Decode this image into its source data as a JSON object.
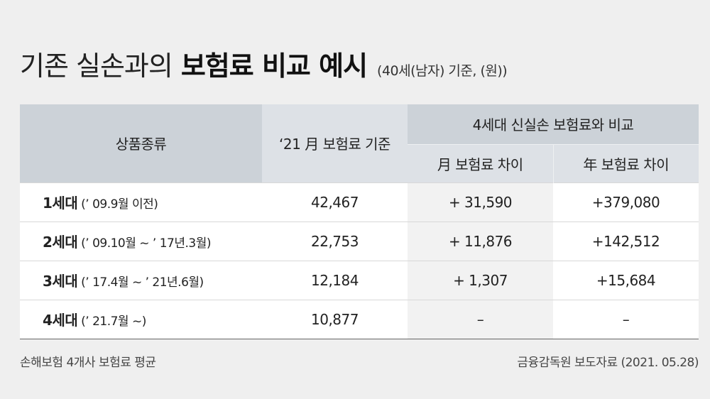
{
  "title": {
    "light": "기존 실손과의",
    "bold": "보험료 비교 예시",
    "note": "(40세(남자) 기준, (원))"
  },
  "table": {
    "headers": {
      "product": "상품종류",
      "base": "‘21 月 보험료 기준",
      "compare_group": "4세대 신실손 보험료와 비교",
      "monthly_diff": "月 보험료 차이",
      "yearly_diff": "年 보험료 차이"
    },
    "rows": [
      {
        "gen": "1세대",
        "period": " (’ 09.9월 이전)",
        "base": "42,467",
        "monthly": "+ 31,590",
        "yearly": "+379,080"
      },
      {
        "gen": "2세대",
        "period": " (’ 09.10월 ~ ’ 17년.3월)",
        "base": "22,753",
        "monthly": "+ 11,876",
        "yearly": "+142,512"
      },
      {
        "gen": "3세대",
        "period": " (’ 17.4월 ~ ’ 21년.6월)",
        "base": "12,184",
        "monthly": "+ 1,307",
        "yearly": "+15,684"
      },
      {
        "gen": "4세대",
        "period": " (’ 21.7월 ~)",
        "base": "10,877",
        "monthly": "–",
        "yearly": "–"
      }
    ]
  },
  "footer": {
    "left": "손해보험 4개사 보험료 평균",
    "right": "금융감독원 보도자료 (2021. 05.28)"
  }
}
